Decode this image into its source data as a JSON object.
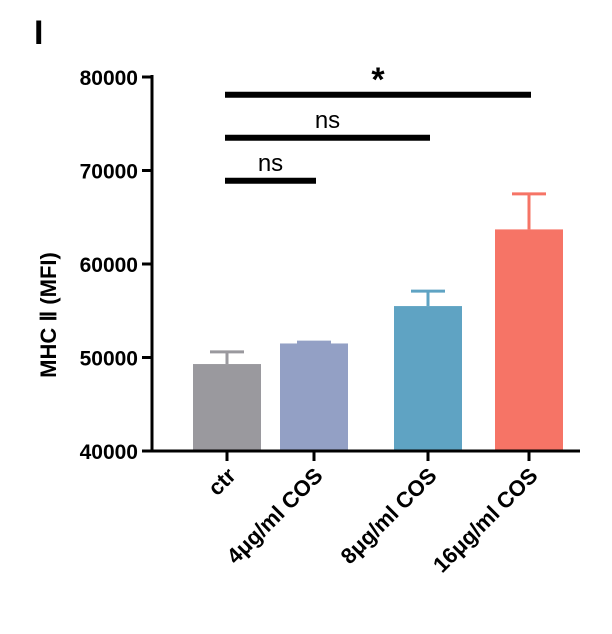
{
  "panel_label": "I",
  "chart_data": {
    "type": "bar",
    "title": "",
    "xlabel": "",
    "ylabel": "MHC Ⅱ (MFI)",
    "ylim": [
      40000,
      80000
    ],
    "yticks": [
      40000,
      50000,
      60000,
      70000,
      80000
    ],
    "ytick_labels": [
      "40000",
      "50000",
      "60000",
      "70000",
      "80000"
    ],
    "categories": [
      "ctr",
      "4μg/ml COS",
      "8μg/ml COS",
      "16μg/ml COS"
    ],
    "values": [
      49300,
      51500,
      55500,
      63700
    ],
    "errors": [
      1300,
      150,
      1600,
      3800
    ],
    "colors": [
      "#9a999e",
      "#93a0c5",
      "#5fa3c3",
      "#f67466"
    ],
    "grid": false,
    "legend": "none",
    "significance": [
      {
        "from": 0,
        "to": 1,
        "label": "ns",
        "y": 68900
      },
      {
        "from": 0,
        "to": 2,
        "label": "ns",
        "y": 73500
      },
      {
        "from": 0,
        "to": 3,
        "label": "*",
        "y": 78100
      }
    ]
  }
}
